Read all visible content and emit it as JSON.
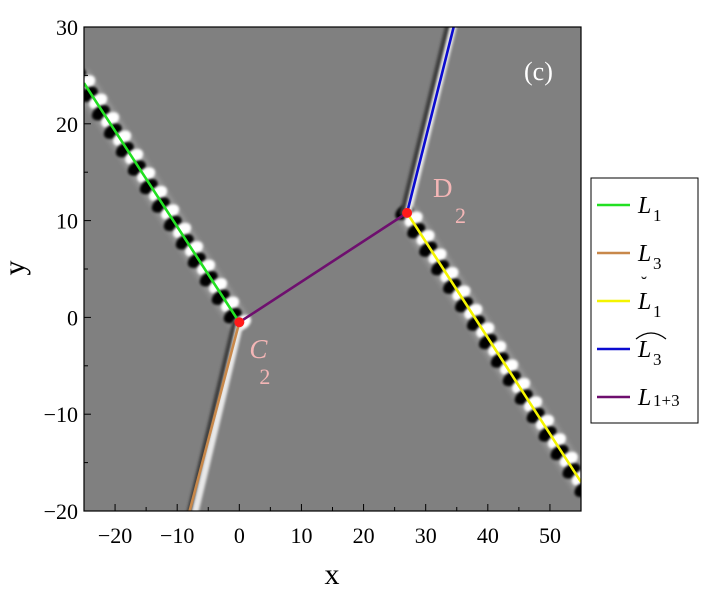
{
  "chart_data": {
    "type": "density-plot-with-lines",
    "panel_label": "(c)",
    "xlabel": "x",
    "ylabel": "y",
    "xlim": [
      -25,
      55
    ],
    "ylim": [
      -20,
      30
    ],
    "x_ticks": [
      -20,
      -10,
      0,
      10,
      20,
      30,
      40,
      50
    ],
    "x_tick_labels": [
      "−20",
      "−10",
      "0",
      "10",
      "20",
      "30",
      "40",
      "50"
    ],
    "y_ticks": [
      -20,
      -10,
      0,
      10,
      20,
      30
    ],
    "y_tick_labels": [
      "−20",
      "−10",
      "0",
      "10",
      "20",
      "30"
    ],
    "background_color": "#808080",
    "series": [
      {
        "name": "L",
        "sub": "1",
        "accent": "",
        "color": "#22e022",
        "points": [
          [
            -25,
            24.2
          ],
          [
            0,
            -0.5
          ]
        ]
      },
      {
        "name": "L",
        "sub": "3",
        "accent": "",
        "color": "#c8884a",
        "points": [
          [
            0,
            -0.5
          ],
          [
            -8,
            -20
          ]
        ]
      },
      {
        "name": "L",
        "sub": "1",
        "accent": "˘",
        "color": "#f4f400",
        "points": [
          [
            27,
            10.8
          ],
          [
            55,
            -17
          ]
        ]
      },
      {
        "name": "L",
        "sub": "3",
        "accent": "⌒",
        "color": "#0b0bd0",
        "points": [
          [
            27,
            10.8
          ],
          [
            34.5,
            30
          ]
        ]
      },
      {
        "name": "L",
        "sub": "1+3",
        "accent": "",
        "color": "#6e0f6e",
        "points": [
          [
            0,
            -0.5
          ],
          [
            27,
            10.8
          ]
        ]
      }
    ],
    "special_points": [
      {
        "label": "C",
        "sub": "2",
        "x": 0,
        "y": -0.5,
        "color": "#ff1a1a"
      },
      {
        "label": "D",
        "sub": "2",
        "x": 27,
        "y": 10.8,
        "color": "#ff1a1a"
      }
    ],
    "grid": false,
    "legend_position": "right"
  }
}
